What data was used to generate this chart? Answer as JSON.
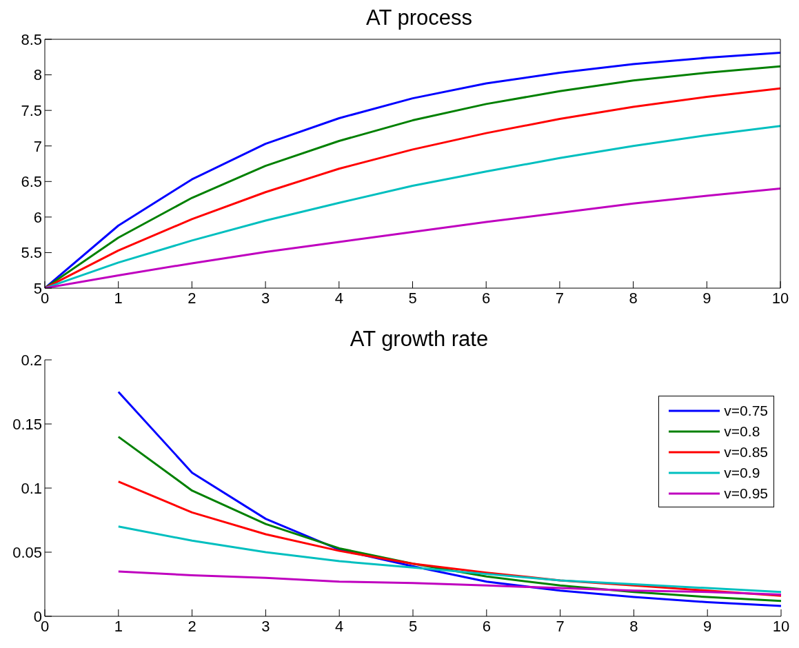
{
  "chart_data": [
    {
      "type": "line",
      "title": "AT process",
      "xlim": [
        0,
        10
      ],
      "xticks": [
        0,
        1,
        2,
        3,
        4,
        5,
        6,
        7,
        8,
        9,
        10
      ],
      "ylim": [
        5,
        8.5
      ],
      "yticks": [
        5,
        5.5,
        6,
        6.5,
        7,
        7.5,
        8,
        8.5
      ],
      "grid": false,
      "legend": false,
      "x": [
        0,
        1,
        2,
        3,
        4,
        5,
        6,
        7,
        8,
        9,
        10
      ],
      "series": [
        {
          "color": "#0000ff",
          "values": [
            5,
            5.88,
            6.53,
            7.03,
            7.39,
            7.67,
            7.88,
            8.03,
            8.15,
            8.24,
            8.31
          ]
        },
        {
          "color": "#008000",
          "values": [
            5,
            5.71,
            6.27,
            6.72,
            7.07,
            7.36,
            7.59,
            7.77,
            7.92,
            8.03,
            8.12
          ]
        },
        {
          "color": "#ff0000",
          "values": [
            5,
            5.53,
            5.97,
            6.35,
            6.68,
            6.95,
            7.18,
            7.38,
            7.55,
            7.69,
            7.81
          ]
        },
        {
          "color": "#00bfbf",
          "values": [
            5,
            5.36,
            5.67,
            5.95,
            6.2,
            6.44,
            6.64,
            6.83,
            7,
            7.15,
            7.28
          ]
        },
        {
          "color": "#bf00bf",
          "values": [
            5,
            5.18,
            5.35,
            5.51,
            5.65,
            5.79,
            5.93,
            6.06,
            6.19,
            6.3,
            6.4
          ]
        }
      ]
    },
    {
      "type": "line",
      "title": "AT growth rate",
      "xlim": [
        0,
        10
      ],
      "xticks": [
        0,
        1,
        2,
        3,
        4,
        5,
        6,
        7,
        8,
        9,
        10
      ],
      "ylim": [
        0,
        0.2
      ],
      "yticks": [
        0,
        0.05,
        0.1,
        0.15,
        0.2
      ],
      "grid": false,
      "legend": "top right",
      "x": [
        1,
        2,
        3,
        4,
        5,
        6,
        7,
        8,
        9,
        10
      ],
      "series": [
        {
          "name": "v=0.75",
          "color": "#0000ff",
          "values": [
            0.175,
            0.112,
            0.076,
            0.052,
            0.039,
            0.027,
            0.02,
            0.015,
            0.011,
            0.008
          ]
        },
        {
          "name": "v=0.8",
          "color": "#008000",
          "values": [
            0.14,
            0.098,
            0.072,
            0.053,
            0.041,
            0.031,
            0.024,
            0.019,
            0.015,
            0.012
          ]
        },
        {
          "name": "v=0.85",
          "color": "#ff0000",
          "values": [
            0.105,
            0.081,
            0.064,
            0.051,
            0.041,
            0.034,
            0.028,
            0.024,
            0.02,
            0.016
          ]
        },
        {
          "name": "v=0.9",
          "color": "#00bfbf",
          "values": [
            0.07,
            0.059,
            0.05,
            0.043,
            0.038,
            0.033,
            0.028,
            0.025,
            0.022,
            0.019
          ]
        },
        {
          "name": "v=0.95",
          "color": "#bf00bf",
          "values": [
            0.035,
            0.032,
            0.03,
            0.027,
            0.026,
            0.024,
            0.022,
            0.02,
            0.019,
            0.017
          ]
        }
      ]
    }
  ]
}
